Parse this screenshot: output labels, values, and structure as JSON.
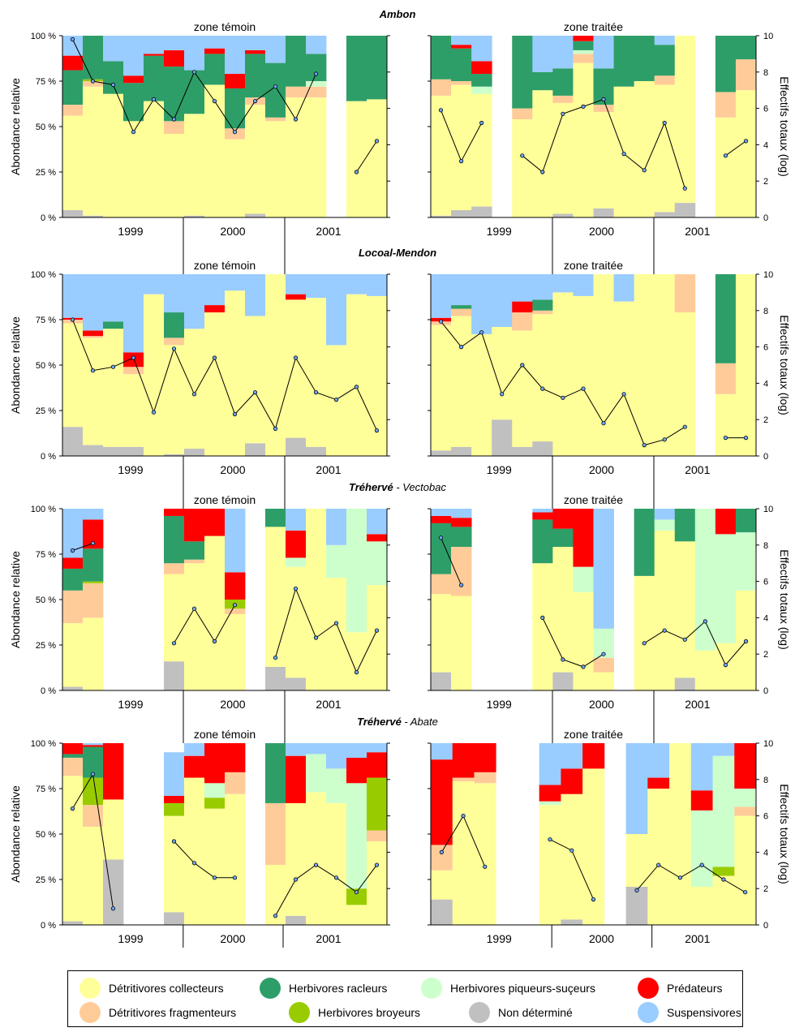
{
  "chart_data": {
    "type": "bar",
    "stacked": true,
    "normalized": true,
    "y_left": {
      "label": "Abondance relative",
      "ticks": [
        "0 %",
        "25 %",
        "50 %",
        "75 %",
        "100 %"
      ],
      "lim": [
        0,
        100
      ]
    },
    "y_right": {
      "label": "Effectifs totaux (log)",
      "ticks": [
        "0",
        "2",
        "4",
        "6",
        "8",
        "10"
      ],
      "lim": [
        0,
        10
      ]
    },
    "zone_labels": [
      "zone témoin",
      "zone traitée"
    ],
    "year_labels": [
      "1999",
      "2000",
      "2001"
    ],
    "categories_order": [
      "ND",
      "DC",
      "DF",
      "HB",
      "HPS",
      "HR",
      "P",
      "S"
    ],
    "categories": {
      "DC": {
        "label": "Détritivores collecteurs",
        "color": "#ffff99"
      },
      "HR": {
        "label": "Herbivores racleurs",
        "color": "#2e9e68"
      },
      "HPS": {
        "label": "Herbivores piqueurs-suçeurs",
        "color": "#ccffcc"
      },
      "P": {
        "label": "Prédateurs",
        "color": "#ff0000"
      },
      "DF": {
        "label": "Détritivores fragmenteurs",
        "color": "#ffcc99"
      },
      "HB": {
        "label": "Herbivores broyeurs",
        "color": "#99cc00"
      },
      "ND": {
        "label": "Non déterminé",
        "color": "#c0c0c0"
      },
      "S": {
        "label": "Suspensivores",
        "color": "#99ccff"
      }
    },
    "legend": {
      "rows": [
        [
          "DC",
          "HR",
          "HPS",
          "P"
        ],
        [
          "DF",
          "HB",
          "ND",
          "S"
        ]
      ],
      "placement": "bottom"
    },
    "sites": [
      {
        "title_bold": "Ambon",
        "title_rest": "",
        "panels": [
          {
            "zone": "zone témoin",
            "bars": [
              {
                "ND": 4,
                "DC": 52,
                "DF": 6,
                "HR": 19,
                "P": 8,
                "S": 11
              },
              {
                "ND": 1,
                "DC": 71,
                "DF": 3,
                "HR": 24,
                "HB": 1
              },
              {
                "DC": 68,
                "HR": 18,
                "S": 14
              },
              {
                "DC": 53,
                "HR": 21,
                "P": 4,
                "S": 22
              },
              {
                "DC": 64,
                "HR": 25,
                "P": 1,
                "S": 10
              },
              {
                "DC": 46,
                "DF": 7,
                "HR": 30,
                "P": 9,
                "S": 8
              },
              {
                "ND": 1,
                "DC": 56,
                "HR": 24,
                "S": 19
              },
              {
                "DC": 73,
                "HR": 17,
                "P": 3,
                "S": 7
              },
              {
                "DC": 43,
                "DF": 6,
                "HR": 22,
                "P": 8,
                "S": 21
              },
              {
                "ND": 2,
                "DC": 60,
                "DF": 4,
                "HR": 24,
                "P": 2,
                "S": 8
              },
              {
                "DC": 53,
                "DF": 2,
                "HR": 30,
                "S": 15
              },
              {
                "DC": 66,
                "DF": 6,
                "HR": 28
              },
              {
                "DC": 66,
                "DF": 6,
                "HPS": 3,
                "HR": 15,
                "S": 10
              },
              null,
              {
                "DC": 64,
                "HR": 36
              },
              {
                "DC": 65,
                "HR": 35
              }
            ],
            "line": [
              9.8,
              7.5,
              7.3,
              4.7,
              6.5,
              5.4,
              8.0,
              6.4,
              4.7,
              6.4,
              7.2,
              5.4,
              7.9,
              null,
              2.5,
              4.2
            ]
          },
          {
            "zone": "zone traitée",
            "bars": [
              {
                "ND": 1,
                "DC": 66,
                "DF": 9,
                "HR": 24
              },
              {
                "ND": 4,
                "DC": 69,
                "DF": 2,
                "HR": 18,
                "P": 2,
                "S": 5
              },
              {
                "ND": 6,
                "DC": 62,
                "HPS": 4,
                "HR": 7,
                "P": 7,
                "S": 14
              },
              null,
              {
                "DC": 54,
                "DF": 6,
                "HR": 40
              },
              {
                "DC": 70,
                "HR": 10,
                "S": 20
              },
              {
                "ND": 2,
                "DC": 61,
                "DF": 4,
                "HR": 15,
                "S": 18
              },
              {
                "DC": 85,
                "DF": 5,
                "HR": 5,
                "P": 3,
                "HPS": 2
              },
              {
                "ND": 5,
                "DC": 53,
                "DF": 4,
                "HR": 20,
                "S": 18
              },
              {
                "DC": 72,
                "HR": 28
              },
              {
                "DC": 75,
                "HR": 25
              },
              {
                "ND": 3,
                "DC": 70,
                "DF": 5,
                "HR": 17,
                "S": 5
              },
              {
                "ND": 8,
                "DC": 92
              },
              null,
              {
                "DC": 55,
                "DF": 14,
                "HR": 31
              },
              {
                "DC": 70,
                "DF": 17,
                "HR": 13
              }
            ],
            "line": [
              5.9,
              3.1,
              5.2,
              null,
              3.4,
              2.5,
              5.7,
              6.1,
              6.5,
              3.5,
              2.6,
              5.2,
              1.6,
              null,
              3.4,
              4.2
            ]
          }
        ]
      },
      {
        "title_bold": "Locoal-Mendon",
        "title_rest": "",
        "panels": [
          {
            "zone": "zone témoin",
            "bars": [
              {
                "ND": 16,
                "DC": 57,
                "DF": 2,
                "P": 1,
                "S": 24
              },
              {
                "ND": 6,
                "DC": 59,
                "DF": 1,
                "P": 3,
                "S": 31
              },
              {
                "ND": 5,
                "DC": 65,
                "HR": 4,
                "S": 26
              },
              {
                "ND": 5,
                "DC": 40,
                "DF": 4,
                "P": 8,
                "S": 43
              },
              {
                "DC": 89,
                "S": 11
              },
              {
                "ND": 1,
                "DC": 60,
                "DF": 4,
                "HR": 14,
                "S": 21
              },
              {
                "ND": 4,
                "DC": 66,
                "S": 30
              },
              {
                "DC": 79,
                "P": 4,
                "S": 17
              },
              {
                "DC": 91,
                "S": 9
              },
              {
                "ND": 7,
                "DC": 70,
                "S": 23
              },
              {
                "DC": 100
              },
              {
                "ND": 10,
                "DC": 76,
                "P": 3,
                "S": 11
              },
              {
                "ND": 5,
                "DC": 82,
                "S": 13
              },
              {
                "DC": 61,
                "S": 39
              },
              {
                "DC": 89,
                "S": 11
              },
              {
                "DC": 88,
                "S": 12
              }
            ],
            "line": [
              7.5,
              4.7,
              4.9,
              5.4,
              2.4,
              5.9,
              3.4,
              5.4,
              2.3,
              3.5,
              1.5,
              5.4,
              3.5,
              3.1,
              3.8,
              1.4
            ]
          },
          {
            "zone": "zone traitée",
            "bars": [
              {
                "ND": 3,
                "DC": 69,
                "DF": 2,
                "P": 2,
                "S": 24
              },
              {
                "ND": 5,
                "DC": 72,
                "DF": 4,
                "HR": 2,
                "S": 17
              },
              {
                "DC": 67,
                "S": 33
              },
              {
                "ND": 20,
                "DC": 51,
                "S": 29
              },
              {
                "ND": 5,
                "DC": 64,
                "DF": 10,
                "P": 6,
                "S": 15
              },
              {
                "ND": 8,
                "DC": 70,
                "DF": 2,
                "HR": 6,
                "S": 14
              },
              {
                "DC": 90,
                "S": 10
              },
              {
                "DC": 88,
                "S": 12
              },
              {
                "DC": 100
              },
              {
                "DC": 85,
                "S": 15
              },
              {
                "DC": 100
              },
              {
                "DC": 100
              },
              {
                "DC": 79,
                "DF": 21
              },
              null,
              {
                "DC": 34,
                "DF": 17,
                "HR": 49
              },
              {
                "DC": 100
              }
            ],
            "line": [
              7.4,
              6.0,
              6.8,
              3.4,
              5.0,
              3.7,
              3.2,
              3.7,
              1.8,
              3.4,
              0.6,
              0.9,
              1.6,
              null,
              1.0,
              1.0
            ]
          }
        ]
      },
      {
        "title_bold": "Tréhervé",
        "title_rest": " - Vectobac",
        "panels": [
          {
            "zone": "zone témoin",
            "bars": [
              {
                "ND": 2,
                "DC": 35,
                "DF": 18,
                "HR": 12,
                "P": 6,
                "S": 27
              },
              {
                "DC": 40,
                "DF": 19,
                "HB": 1,
                "HR": 18,
                "P": 16,
                "S": 6
              },
              null,
              null,
              null,
              {
                "ND": 16,
                "DC": 48,
                "DF": 6,
                "HR": 26,
                "P": 4
              },
              {
                "DC": 70,
                "DF": 2,
                "HR": 10,
                "P": 18
              },
              {
                "DC": 85,
                "P": 15
              },
              {
                "DC": 42,
                "DF": 3,
                "HB": 5,
                "P": 15,
                "S": 35
              },
              null,
              {
                "ND": 13,
                "DC": 77,
                "HR": 10
              },
              {
                "ND": 7,
                "DC": 61,
                "HPS": 5,
                "P": 15,
                "S": 12
              },
              {
                "DC": 100
              },
              {
                "DC": 62,
                "HPS": 18,
                "S": 20
              },
              {
                "DC": 32,
                "HPS": 68
              },
              {
                "DC": 58,
                "HPS": 24,
                "P": 4,
                "S": 14
              }
            ],
            "line": [
              7.7,
              8.1,
              null,
              null,
              null,
              2.6,
              4.5,
              2.7,
              4.7,
              null,
              1.8,
              5.6,
              2.9,
              3.7,
              1.0,
              3.3
            ]
          },
          {
            "zone": "zone traitée",
            "bars": [
              {
                "ND": 10,
                "DC": 43,
                "DF": 11,
                "HR": 28,
                "P": 4,
                "S": 4
              },
              {
                "DC": 52,
                "DF": 27,
                "HR": 11,
                "P": 5,
                "S": 5
              },
              null,
              null,
              null,
              {
                "DC": 70,
                "HR": 24,
                "P": 4,
                "S": 2
              },
              {
                "ND": 10,
                "DC": 69,
                "HR": 10,
                "P": 11
              },
              {
                "DC": 54,
                "HPS": 14,
                "P": 32
              },
              {
                "DC": 10,
                "DF": 8,
                "HPS": 16,
                "S": 66
              },
              null,
              {
                "DC": 63,
                "HR": 37
              },
              {
                "DC": 88,
                "HPS": 6,
                "S": 6
              },
              {
                "ND": 7,
                "DC": 75,
                "HR": 18
              },
              {
                "DC": 22,
                "HPS": 78
              },
              {
                "DC": 26,
                "HPS": 60,
                "P": 14
              },
              {
                "DC": 55,
                "HR": 13,
                "HPS": 32
              }
            ],
            "line": [
              8.4,
              5.8,
              null,
              null,
              null,
              4.0,
              1.7,
              1.3,
              2.0,
              null,
              2.6,
              3.3,
              2.8,
              3.8,
              1.4,
              2.7
            ]
          }
        ]
      },
      {
        "title_bold": "Tréhervé",
        "title_rest": " - Abate",
        "panels": [
          {
            "zone": "zone témoin",
            "bars": [
              {
                "ND": 2,
                "DC": 80,
                "DF": 10,
                "HR": 2,
                "P": 6
              },
              {
                "DC": 54,
                "DF": 12,
                "HB": 15,
                "HR": 17,
                "P": 1,
                "S": 1
              },
              {
                "ND": 36,
                "DC": 33,
                "P": 31
              },
              null,
              null,
              {
                "ND": 7,
                "DC": 53,
                "HB": 7,
                "P": 4,
                "S": 24
              },
              {
                "DC": 81,
                "P": 12,
                "S": 7
              },
              {
                "DC": 64,
                "HB": 6,
                "HPS": 8,
                "P": 22
              },
              {
                "DC": 72,
                "DF": 12,
                "P": 16
              },
              null,
              {
                "DC": 33,
                "DF": 34,
                "HR": 33
              },
              {
                "ND": 5,
                "DC": 62,
                "P": 26,
                "S": 7
              },
              {
                "DC": 73,
                "HPS": 21,
                "S": 6
              },
              {
                "DC": 67,
                "HPS": 19,
                "S": 14
              },
              {
                "DC": 11,
                "HB": 9,
                "HPS": 58,
                "P": 14,
                "S": 8
              },
              {
                "DC": 46,
                "DF": 6,
                "HB": 29,
                "P": 14,
                "S": 5
              }
            ],
            "line": [
              6.4,
              8.3,
              0.9,
              null,
              null,
              4.6,
              3.4,
              2.6,
              2.6,
              null,
              0.5,
              2.5,
              3.3,
              2.6,
              1.8,
              3.3
            ]
          },
          {
            "zone": "zone traitée",
            "bars": [
              {
                "ND": 14,
                "DC": 16,
                "DF": 14,
                "P": 47,
                "S": 9
              },
              {
                "DC": 79,
                "DF": 2,
                "P": 19
              },
              {
                "DC": 78,
                "DF": 6,
                "P": 16
              },
              null,
              null,
              {
                "DC": 66,
                "HPS": 2,
                "P": 9,
                "S": 23
              },
              {
                "ND": 3,
                "DC": 69,
                "P": 14,
                "S": 14
              },
              {
                "DC": 86,
                "P": 14
              },
              null,
              {
                "ND": 21,
                "DC": 29,
                "S": 50
              },
              {
                "DC": 75,
                "P": 6,
                "S": 19
              },
              {
                "DC": 100
              },
              {
                "DC": 21,
                "HPS": 42,
                "P": 11,
                "S": 26
              },
              {
                "DC": 27,
                "HB": 5,
                "HPS": 61,
                "S": 7
              },
              {
                "DC": 60,
                "DF": 5,
                "HPS": 10,
                "P": 25
              }
            ],
            "line": [
              4.0,
              6.0,
              3.2,
              null,
              null,
              4.7,
              4.1,
              1.4,
              null,
              1.9,
              3.3,
              2.6,
              3.3,
              2.5,
              1.8
            ]
          }
        ]
      }
    ]
  }
}
